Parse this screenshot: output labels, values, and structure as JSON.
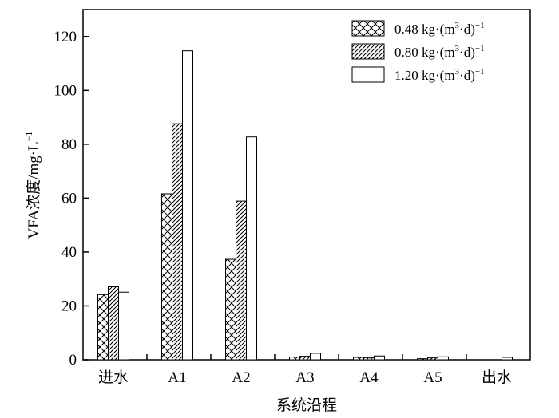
{
  "chart_data": {
    "type": "bar",
    "title": "",
    "xlabel": "系统沿程",
    "ylabel": "VFA浓度/mg·L",
    "ylabel_sup": "−1",
    "ylim": [
      0,
      130
    ],
    "yticks": [
      0,
      20,
      40,
      60,
      80,
      100,
      120
    ],
    "legend_position": "top-right",
    "categories": [
      "进水",
      "A1",
      "A2",
      "A3",
      "A4",
      "A5",
      "出水"
    ],
    "series": [
      {
        "name": "0.48 kg·(m³·d)⁻¹",
        "legend_parts": {
          "pre": "0.48 kg·(m",
          "sup1": "3",
          "mid": "·d)",
          "sup2": "−1"
        },
        "pattern": "crosshatch",
        "values": [
          24.2,
          61.6,
          37.3,
          1.0,
          0.9,
          0.4,
          0
        ]
      },
      {
        "name": "0.80 kg·(m³·d)⁻¹",
        "legend_parts": {
          "pre": "0.80 kg·(m",
          "sup1": "3",
          "mid": "·d)",
          "sup2": "−1"
        },
        "pattern": "diagonal",
        "values": [
          27.1,
          87.6,
          58.9,
          1.3,
          0.7,
          0.7,
          0
        ]
      },
      {
        "name": "1.20 kg·(m³·d)⁻¹",
        "legend_parts": {
          "pre": "1.20 kg·(m",
          "sup1": "3",
          "mid": "·d)",
          "sup2": "−1"
        },
        "pattern": "blank",
        "values": [
          25.1,
          114.7,
          82.7,
          2.4,
          1.4,
          1.1,
          0.9
        ]
      }
    ]
  }
}
